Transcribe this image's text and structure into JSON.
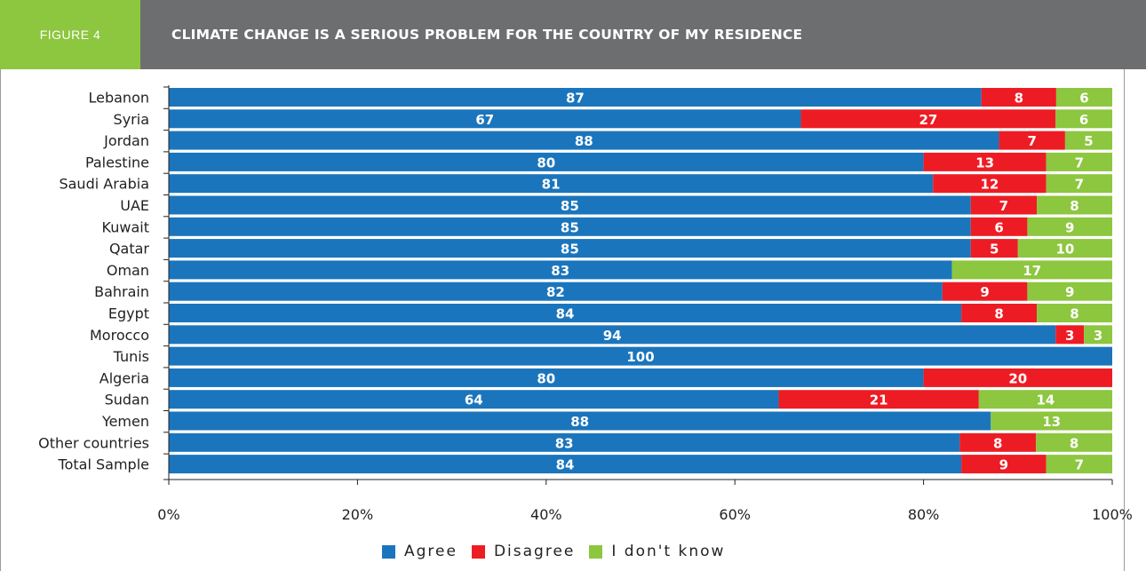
{
  "header": {
    "figure_tag": "FIGURE 4",
    "title": "CLIMATE CHANGE IS A SERIOUS PROBLEM FOR THE COUNTRY OF MY RESIDENCE"
  },
  "colors": {
    "header_bg": "#6d6e70",
    "tag_bg": "#8dc63f",
    "agree": "#1b75bc",
    "disagree": "#ed1c24",
    "dont_know": "#8dc63f"
  },
  "chart_data": {
    "type": "bar",
    "orientation": "horizontal",
    "stacked": "percent",
    "title": "CLIMATE CHANGE IS A SERIOUS PROBLEM FOR THE COUNTRY OF MY RESIDENCE",
    "categories": [
      "Lebanon",
      "Syria",
      "Jordan",
      "Palestine",
      "Saudi Arabia",
      "UAE",
      "Kuwait",
      "Qatar",
      "Oman",
      "Bahrain",
      "Egypt",
      "Morocco",
      "Tunis",
      "Algeria",
      "Sudan",
      "Yemen",
      "Other countries",
      "Total Sample"
    ],
    "series": [
      {
        "name": "Agree",
        "values": [
          87,
          67,
          88,
          80,
          81,
          85,
          85,
          85,
          83,
          82,
          84,
          94,
          100,
          80,
          64,
          88,
          83,
          84
        ]
      },
      {
        "name": "Disagree",
        "values": [
          8,
          27,
          7,
          13,
          12,
          7,
          6,
          5,
          0,
          9,
          8,
          3,
          0,
          20,
          21,
          0,
          8,
          9
        ]
      },
      {
        "name": "I don't know",
        "values": [
          6,
          6,
          5,
          7,
          7,
          8,
          9,
          10,
          17,
          9,
          8,
          3,
          0,
          0,
          14,
          13,
          8,
          7
        ]
      }
    ],
    "x_ticks": [
      "0%",
      "20%",
      "40%",
      "60%",
      "80%",
      "100%"
    ],
    "xlim": [
      0,
      100
    ],
    "grid": false,
    "legend_position": "bottom"
  },
  "legend": {
    "agree": "Agree",
    "disagree": "Disagree",
    "dont_know": "I don't know"
  }
}
